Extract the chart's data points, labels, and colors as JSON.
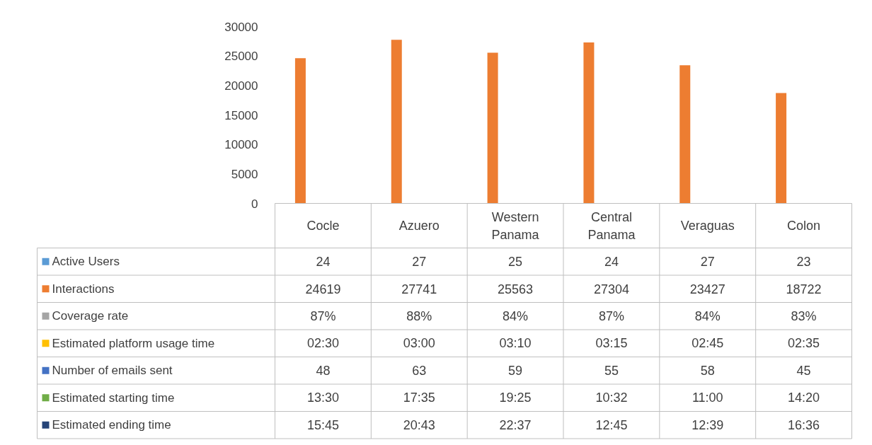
{
  "chart_data": {
    "type": "bar",
    "categories": [
      "Cocle",
      "Azuero",
      "Western Panama",
      "Central Panama",
      "Veraguas",
      "Colon"
    ],
    "ylim": [
      0,
      30000
    ],
    "yticks": [
      0,
      5000,
      10000,
      15000,
      20000,
      25000,
      30000
    ],
    "legend": "bottom",
    "series": [
      {
        "name": "Active Users",
        "color": "#5b9bd5",
        "values": [
          24,
          27,
          25,
          24,
          27,
          23
        ],
        "value_labels": [
          "24",
          "27",
          "25",
          "24",
          "27",
          "23"
        ]
      },
      {
        "name": "Interactions",
        "color": "#ed7d31",
        "values": [
          24619,
          27741,
          25563,
          27304,
          23427,
          18722
        ],
        "value_labels": [
          "24619",
          "27741",
          "25563",
          "27304",
          "23427",
          "18722"
        ]
      },
      {
        "name": "Coverage rate",
        "color": "#a5a5a5",
        "values": [
          0.87,
          0.88,
          0.84,
          0.87,
          0.84,
          0.83
        ],
        "value_labels": [
          "87%",
          "88%",
          "84%",
          "87%",
          "84%",
          "83%"
        ]
      },
      {
        "name": "Estimated platform usage time",
        "color": "#ffc000",
        "values": [
          2.5,
          3.0,
          3.167,
          3.25,
          2.75,
          2.583
        ],
        "value_labels": [
          "02:30",
          "03:00",
          "03:10",
          "03:15",
          "02:45",
          "02:35"
        ]
      },
      {
        "name": "Number of emails sent",
        "color": "#4472c4",
        "values": [
          48,
          63,
          59,
          55,
          58,
          45
        ],
        "value_labels": [
          "48",
          "63",
          "59",
          "55",
          "58",
          "45"
        ]
      },
      {
        "name": "Estimated starting time",
        "color": "#70ad47",
        "values": [
          13.5,
          17.583,
          19.417,
          10.533,
          11.0,
          14.333
        ],
        "value_labels": [
          "13:30",
          "17:35",
          "19:25",
          "10:32",
          "11:00",
          "14:20"
        ]
      },
      {
        "name": "Estimated ending time",
        "color": "#264478",
        "values": [
          15.75,
          20.717,
          22.617,
          12.75,
          12.65,
          16.6
        ],
        "value_labels": [
          "15:45",
          "20:43",
          "22:37",
          "12:45",
          "12:39",
          "16:36"
        ]
      }
    ]
  }
}
